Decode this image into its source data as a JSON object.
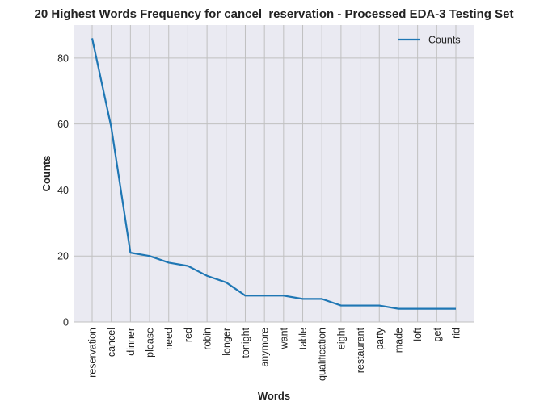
{
  "chart_data": {
    "type": "line",
    "title": "20 Highest Words Frequency for cancel_reservation - Processed EDA-3 Testing Set",
    "xlabel": "Words",
    "ylabel": "Counts",
    "categories": [
      "reservation",
      "cancel",
      "dinner",
      "please",
      "need",
      "red",
      "robin",
      "longer",
      "tonight",
      "anymore",
      "want",
      "table",
      "qualification",
      "eight",
      "restaurant",
      "party",
      "made",
      "loft",
      "get",
      "rid"
    ],
    "series": [
      {
        "name": "Counts",
        "values": [
          86,
          59,
          21,
          20,
          18,
          17,
          14,
          12,
          8,
          8,
          8,
          7,
          7,
          5,
          5,
          5,
          4,
          4,
          4,
          4
        ]
      }
    ],
    "ylim": [
      0,
      90
    ],
    "yticks": [
      0,
      20,
      40,
      60,
      80
    ],
    "grid": true,
    "legend": "top-right",
    "colors": {
      "line": "#1f77b4",
      "plot_bg": "#eaeaf2",
      "grid": "#c0c0c0"
    }
  }
}
